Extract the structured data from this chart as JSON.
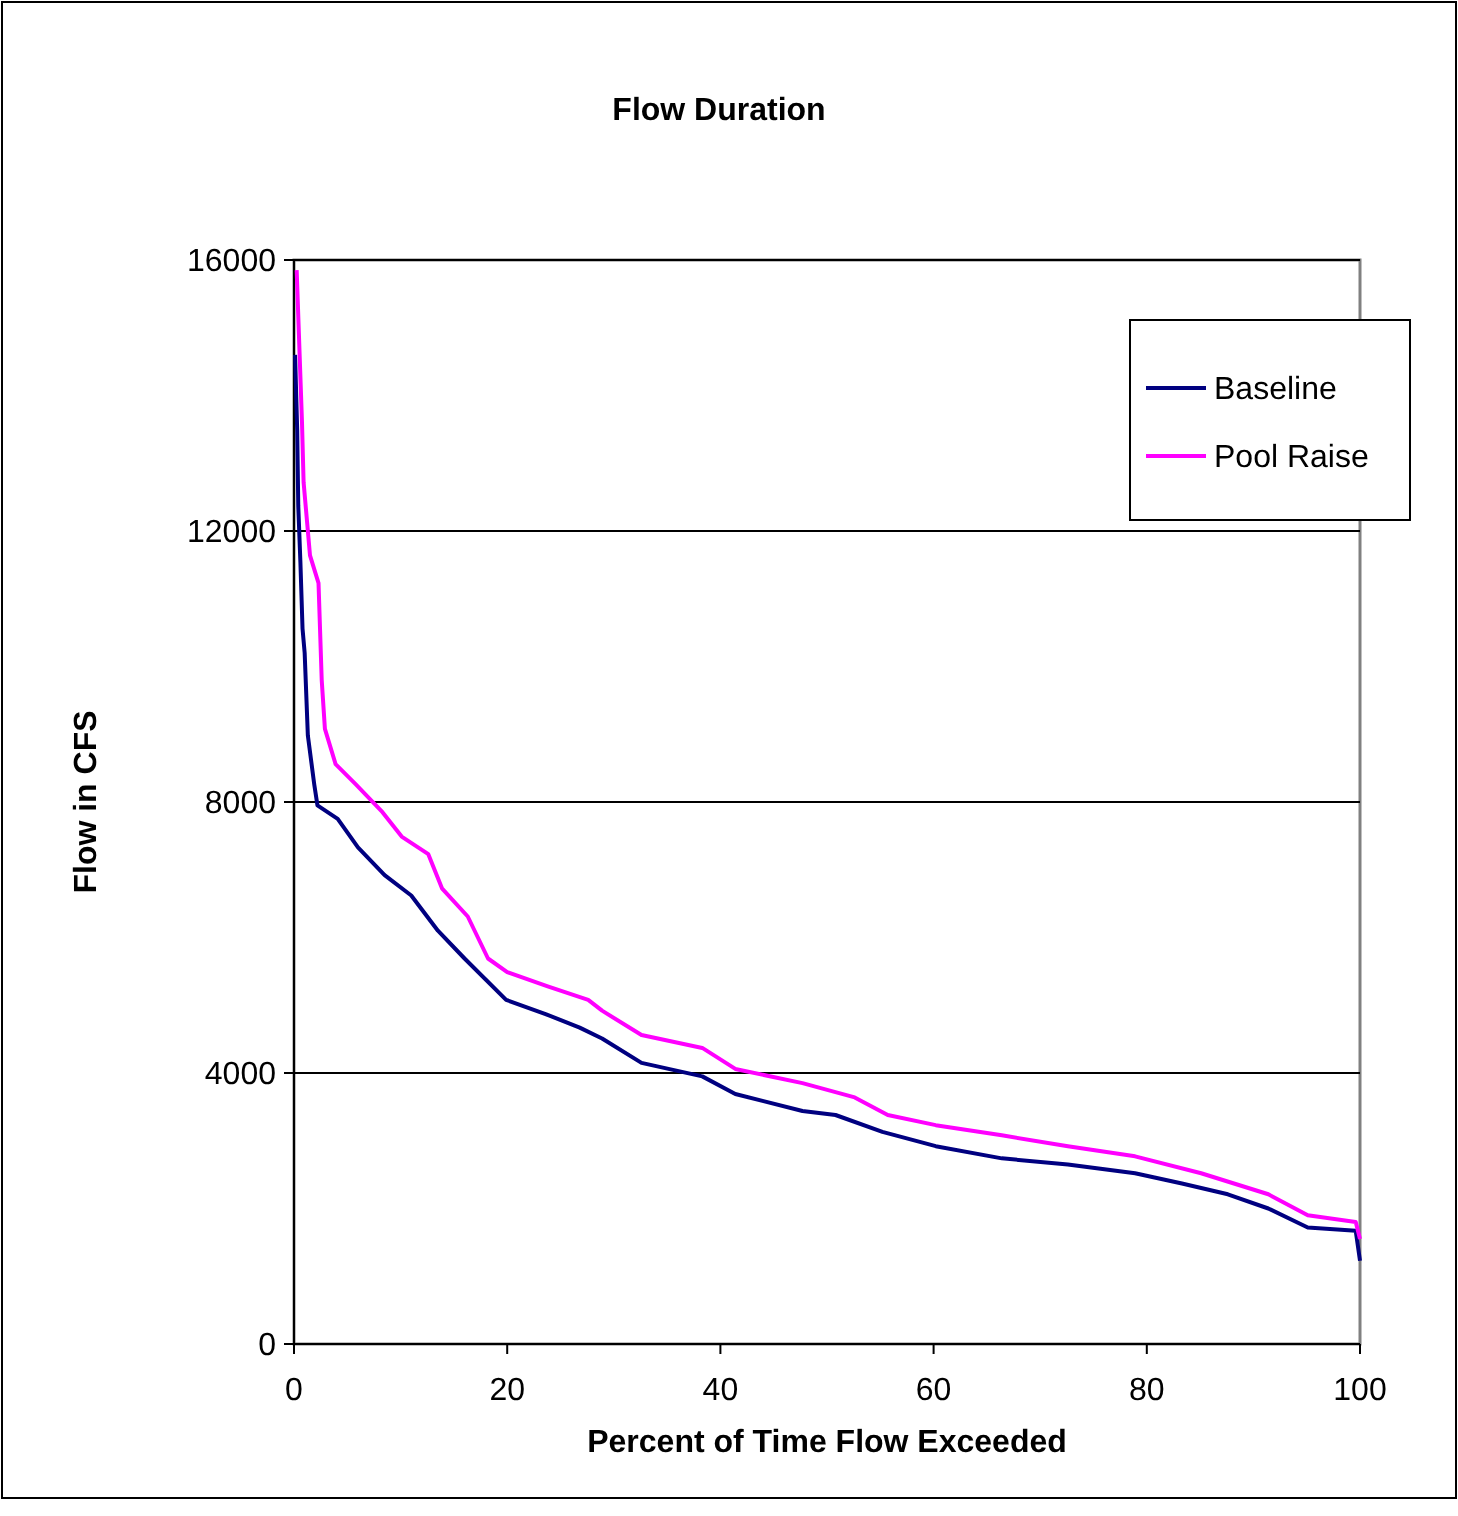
{
  "chart_data": {
    "type": "line",
    "title": "Flow Duration",
    "xlabel": "Percent of Time Flow Exceeded",
    "ylabel": "Flow in CFS",
    "xlim": [
      0,
      100
    ],
    "xticks": [
      0,
      20,
      40,
      60,
      80,
      100
    ],
    "ylim": [
      0,
      16000
    ],
    "yticks": [
      0,
      4000,
      8000,
      12000,
      16000
    ],
    "grid": "y",
    "legend": "top right",
    "line_style": "solid",
    "marker": "none",
    "series": [
      {
        "name": "Baseline",
        "color": "#000080",
        "x": [
          0.1,
          0.3,
          0.4,
          0.6,
          0.8,
          1.0,
          1.3,
          1.9,
          2.2,
          4.1,
          6,
          8.5,
          11,
          13.5,
          16,
          19.9,
          23.6,
          26.8,
          28.9,
          32.6,
          38.3,
          41.4,
          47.7,
          50.8,
          55.2,
          60.2,
          66.4,
          72.6,
          78.9,
          83.3,
          87.6,
          91.4,
          95.1,
          99.6,
          100
        ],
        "values": [
          14600,
          13490,
          12370,
          11540,
          10560,
          10200,
          8980,
          8260,
          7950,
          7750,
          7330,
          6920,
          6620,
          6100,
          5690,
          5080,
          4870,
          4670,
          4510,
          4150,
          3950,
          3690,
          3440,
          3380,
          3130,
          2920,
          2740,
          2650,
          2520,
          2370,
          2210,
          2000,
          1720,
          1670,
          1230
        ]
      },
      {
        "name": "Pool Raise",
        "color": "#ff00ff",
        "x": [
          0.25,
          0.75,
          0.9,
          1.5,
          2.3,
          2.6,
          2.9,
          3.9,
          5.8,
          8.3,
          10.1,
          12.6,
          13.9,
          16.3,
          18.2,
          20,
          23.8,
          27.6,
          28.9,
          32.6,
          38.3,
          41.4,
          47.7,
          52.6,
          55.7,
          60.2,
          66.4,
          72.6,
          78.9,
          85.1,
          91.4,
          95.1,
          99.6,
          100
        ],
        "values": [
          15850,
          13600,
          12720,
          11640,
          11230,
          9800,
          9080,
          8560,
          8260,
          7850,
          7490,
          7230,
          6720,
          6310,
          5690,
          5490,
          5280,
          5080,
          4920,
          4560,
          4370,
          4060,
          3850,
          3640,
          3380,
          3230,
          3080,
          2920,
          2770,
          2520,
          2210,
          1900,
          1800,
          1550
        ]
      }
    ]
  }
}
